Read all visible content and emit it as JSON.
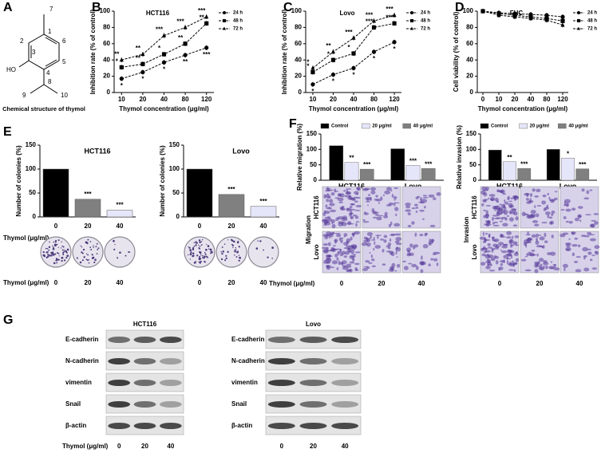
{
  "chart_data": [
    {
      "type": "line",
      "panel": "B",
      "title": "HCT116",
      "categories": [
        "10",
        "20",
        "40",
        "80",
        "120"
      ],
      "ylim": [
        0,
        100
      ],
      "yticks": [
        0,
        20,
        40,
        60,
        80,
        100
      ],
      "x_label": "Thymol concentration (μg/ml)",
      "y_label": "Inhibition rate (% of control)",
      "series": [
        {
          "name": "24 h",
          "color": "#000000",
          "marker": "circle",
          "values": [
            17,
            25,
            37,
            46,
            55
          ],
          "annotations": [
            "*",
            "*",
            "*",
            "**",
            "***"
          ]
        },
        {
          "name": "48 h",
          "color": "#000000",
          "marker": "square",
          "values": [
            31,
            35,
            47,
            60,
            85
          ],
          "annotations": [
            "*",
            "**",
            "*",
            "**",
            "**"
          ]
        },
        {
          "name": "72 h",
          "color": "#000000",
          "marker": "triangle",
          "values": [
            40,
            47,
            70,
            80,
            93
          ],
          "annotations": [
            "**",
            "**",
            "***",
            "***",
            "***"
          ]
        }
      ]
    },
    {
      "type": "line",
      "panel": "C",
      "title": "Lovo",
      "categories": [
        "10",
        "20",
        "40",
        "80",
        "120"
      ],
      "ylim": [
        0,
        100
      ],
      "yticks": [
        0,
        20,
        40,
        60,
        80,
        100
      ],
      "x_label": "Thymol concentration (μg/ml)",
      "y_label": "Inhibition rate (% of control)",
      "series": [
        {
          "name": "24 h",
          "color": "#000000",
          "marker": "circle",
          "values": [
            10,
            22,
            30,
            50,
            62
          ],
          "annotations": [
            "*",
            "*",
            "*",
            "*",
            "*"
          ]
        },
        {
          "name": "48 h",
          "color": "#000000",
          "marker": "square",
          "values": [
            25,
            40,
            48,
            80,
            85
          ],
          "annotations": [
            "*",
            "*",
            "*",
            "***",
            "***"
          ]
        },
        {
          "name": "72 h",
          "color": "#000000",
          "marker": "triangle",
          "values": [
            30,
            50,
            67,
            88,
            95
          ],
          "annotations": [
            "*",
            "**",
            "***",
            "***",
            "***"
          ]
        }
      ]
    },
    {
      "type": "line",
      "panel": "D",
      "title": "FHC",
      "categories": [
        "0",
        "10",
        "20",
        "40",
        "80",
        "120"
      ],
      "ylim": [
        0,
        100
      ],
      "yticks": [
        0,
        20,
        40,
        60,
        80,
        100
      ],
      "x_label": "Thymol concentration (μg/ml)",
      "y_label": "Cell viability (% of control)",
      "series": [
        {
          "name": "24 h",
          "color": "#000000",
          "marker": "circle",
          "values": [
            100,
            98,
            97,
            96,
            95,
            93
          ]
        },
        {
          "name": "48 h",
          "color": "#000000",
          "marker": "square",
          "values": [
            100,
            97,
            95,
            93,
            91,
            88
          ]
        },
        {
          "name": "72 h",
          "color": "#000000",
          "marker": "triangle",
          "values": [
            100,
            95,
            93,
            91,
            89,
            83
          ]
        }
      ]
    },
    {
      "type": "bar",
      "panel": "E",
      "title": "HCT116",
      "categories": [
        "0",
        "20",
        "40"
      ],
      "values": [
        100,
        37,
        14
      ],
      "colors": [
        "#000000",
        "#808080",
        "#e6e6fa"
      ],
      "annotations": [
        null,
        "***",
        "***"
      ],
      "ylim": [
        0,
        150
      ],
      "yticks": [
        0,
        50,
        100,
        150
      ],
      "x_label": "Thymol (μg/ml)",
      "y_label": "Number of colonies (%)"
    },
    {
      "type": "bar",
      "title": "Lovo",
      "categories": [
        "0",
        "20",
        "40"
      ],
      "values": [
        100,
        47,
        22
      ],
      "colors": [
        "#000000",
        "#808080",
        "#e6e6fa"
      ],
      "annotations": [
        null,
        "***",
        "***"
      ],
      "ylim": [
        0,
        150
      ],
      "yticks": [
        0,
        50,
        100,
        150
      ],
      "y_label": "Number of colonies (%)"
    },
    {
      "type": "grouped_bar",
      "panel": "F",
      "categories": [
        "HCT116",
        "Lovo"
      ],
      "ylim": [
        0,
        150
      ],
      "yticks": [
        0,
        50,
        100,
        150
      ],
      "y_label": "Relative migration (%)",
      "series": [
        {
          "name": "Control",
          "color": "#000000",
          "values": [
            112,
            102
          ],
          "annotations": [
            null,
            null
          ]
        },
        {
          "name": "20 μg/ml",
          "color": "#e6e6fa",
          "values": [
            58,
            48
          ],
          "annotations": [
            "**",
            "***"
          ]
        },
        {
          "name": "40 μg/ml",
          "color": "#808080",
          "values": [
            36,
            38
          ],
          "annotations": [
            "***",
            "***"
          ]
        }
      ]
    },
    {
      "type": "grouped_bar",
      "categories": [
        "HCT116",
        "Lovo"
      ],
      "ylim": [
        0,
        150
      ],
      "yticks": [
        0,
        50,
        100,
        150
      ],
      "y_label": "Relative invasion (%)",
      "series": [
        {
          "name": "Control",
          "color": "#000000",
          "values": [
            98,
            100
          ],
          "annotations": [
            null,
            null
          ]
        },
        {
          "name": "20 μg/ml",
          "color": "#e6e6fa",
          "values": [
            60,
            72
          ],
          "annotations": [
            "**",
            "*"
          ]
        },
        {
          "name": "40 μg/ml",
          "color": "#808080",
          "values": [
            38,
            37
          ],
          "annotations": [
            "***",
            "***"
          ]
        }
      ]
    }
  ],
  "structure": {
    "letter": "A",
    "caption": "Chemical structure of thymol",
    "atoms": [
      "1",
      "2",
      "3",
      "4",
      "5",
      "6",
      "7",
      "8",
      "9",
      "10"
    ],
    "hydroxyl": "HO"
  },
  "colony_images": {
    "row_label": "Thymol (μg/ml)",
    "doses": [
      "0",
      "20",
      "40"
    ]
  },
  "transwell_images": {
    "row_label": "Thymol (μg/ml)",
    "doses": [
      "0",
      "20",
      "40"
    ],
    "migration": "Migration",
    "invasion": "Invasion",
    "rows": [
      "HCT116",
      "Lovo"
    ]
  },
  "western": {
    "letter": "G",
    "row_label": "Thymol (μg/ml)",
    "doses": [
      "0",
      "20",
      "40"
    ],
    "blots": [
      {
        "title": "HCT116",
        "proteins": [
          "E-cadherin",
          "N-cadherin",
          "vimentin",
          "Snail",
          "β-actin"
        ]
      },
      {
        "title": "Lovo",
        "proteins": [
          "E-cadherin",
          "N-cadherin",
          "vimentin",
          "Snail",
          "β-actin"
        ]
      }
    ]
  }
}
